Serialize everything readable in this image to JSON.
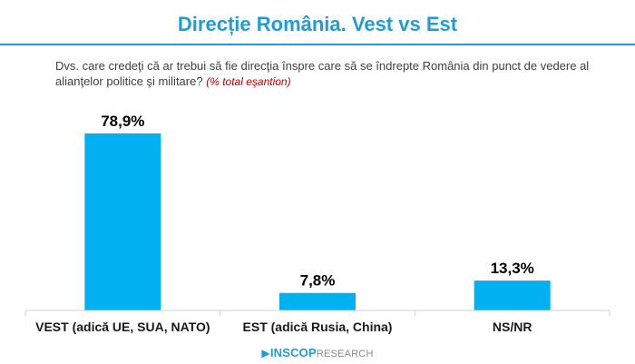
{
  "header": {
    "title": "Direcție România. Vest vs Est"
  },
  "question": {
    "text": "Dvs. care credeţi că ar trebui să fie direcţia înspre care să se îndrepte România din punct de vedere al alianţelor politice şi militare?",
    "note": "(% total eşantion)"
  },
  "chart_data": {
    "type": "bar",
    "categories": [
      "VEST (adică UE, SUA, NATO)",
      "EST (adică Rusia, China)",
      "NS/NR"
    ],
    "values": [
      78.9,
      7.8,
      13.3
    ],
    "value_labels": [
      "78,9%",
      "7,8%",
      "13,3%"
    ],
    "unit": "%",
    "ylim": [
      0,
      80
    ],
    "grid": false,
    "legend": "none",
    "bar_color": "#00b0f0"
  },
  "footer": {
    "brand": "INSCOP",
    "brand_sub": "RESEARCH",
    "logo_icon": "inscop-arrow-icon"
  },
  "colors": {
    "accent": "#1f9bd6",
    "note": "#c00000"
  }
}
